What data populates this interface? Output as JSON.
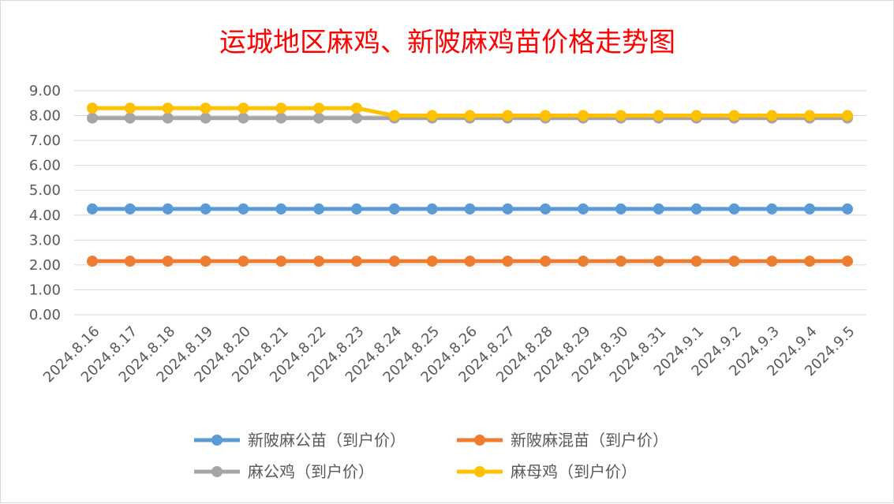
{
  "chart_data": {
    "type": "line",
    "title": "运城地区麻鸡、新陂麻鸡苗价格走势图",
    "xlabel": "",
    "ylabel": "",
    "ylim": [
      0,
      9
    ],
    "ytick_step": 1,
    "ytick_labels": [
      "0.00",
      "1.00",
      "2.00",
      "3.00",
      "4.00",
      "5.00",
      "6.00",
      "7.00",
      "8.00",
      "9.00"
    ],
    "grid": true,
    "legend_position": "bottom",
    "categories": [
      "2024.8.16",
      "2024.8.17",
      "2024.8.18",
      "2024.8.19",
      "2024.8.20",
      "2024.8.21",
      "2024.8.22",
      "2024.8.23",
      "2024.8.24",
      "2024.8.25",
      "2024.8.26",
      "2024.8.27",
      "2024.8.28",
      "2024.8.29",
      "2024.8.30",
      "2024.8.31",
      "2024.9.1",
      "2024.9.2",
      "2024.9.3",
      "2024.9.4",
      "2024.9.5"
    ],
    "series": [
      {
        "name": "新陂麻公苗（到户价）",
        "color": "#5b9bd5",
        "values": [
          4.25,
          4.25,
          4.25,
          4.25,
          4.25,
          4.25,
          4.25,
          4.25,
          4.25,
          4.25,
          4.25,
          4.25,
          4.25,
          4.25,
          4.25,
          4.25,
          4.25,
          4.25,
          4.25,
          4.25,
          4.25
        ]
      },
      {
        "name": "新陂麻混苗（到户价）",
        "color": "#ed7d31",
        "values": [
          2.15,
          2.15,
          2.15,
          2.15,
          2.15,
          2.15,
          2.15,
          2.15,
          2.15,
          2.15,
          2.15,
          2.15,
          2.15,
          2.15,
          2.15,
          2.15,
          2.15,
          2.15,
          2.15,
          2.15,
          2.15
        ]
      },
      {
        "name": "麻公鸡（到户价）",
        "color": "#a5a5a5",
        "values": [
          7.9,
          7.9,
          7.9,
          7.9,
          7.9,
          7.9,
          7.9,
          7.9,
          7.9,
          7.9,
          7.9,
          7.9,
          7.9,
          7.9,
          7.9,
          7.9,
          7.9,
          7.9,
          7.9,
          7.9,
          7.9
        ]
      },
      {
        "name": "麻母鸡（到户价）",
        "color": "#ffc000",
        "values": [
          8.3,
          8.3,
          8.3,
          8.3,
          8.3,
          8.3,
          8.3,
          8.3,
          8.0,
          8.0,
          8.0,
          8.0,
          8.0,
          8.0,
          8.0,
          8.0,
          8.0,
          8.0,
          8.0,
          8.0,
          8.0
        ]
      }
    ]
  }
}
